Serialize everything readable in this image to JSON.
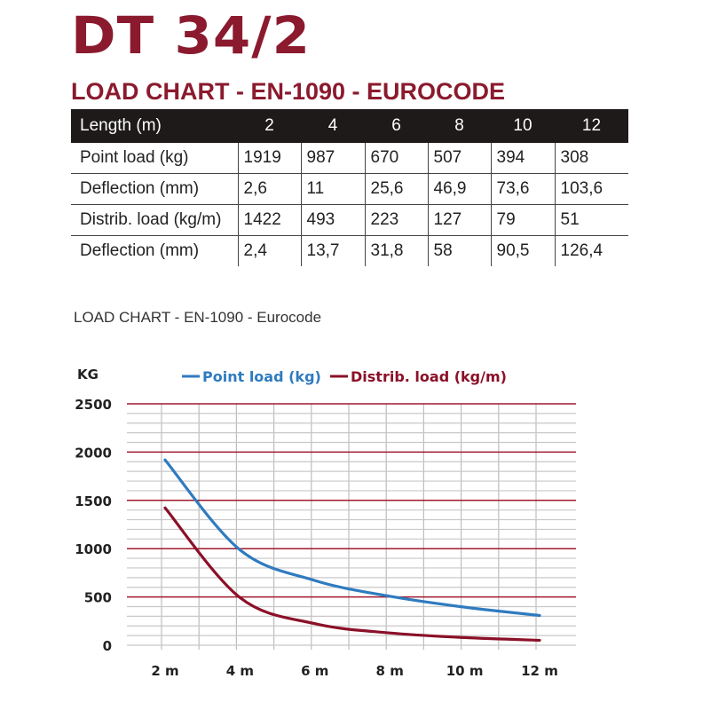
{
  "title": "DT 34/2",
  "subtitle": "LOAD CHART - EN-1090 - EUROCODE",
  "table": {
    "header": [
      "Length (m)",
      "2",
      "4",
      "6",
      "8",
      "10",
      "12"
    ],
    "rows": [
      [
        "Point load (kg)",
        "1919",
        "987",
        "670",
        "507",
        "394",
        "308"
      ],
      [
        "Deflection (mm)",
        "2,6",
        "11",
        "25,6",
        "46,9",
        "73,6",
        "103,6"
      ],
      [
        "Distrib. load (kg/m)",
        "1422",
        "493",
        "223",
        "127",
        "79",
        "51"
      ],
      [
        "Deflection (mm)",
        "2,4",
        "13,7",
        "31,8",
        "58",
        "90,5",
        "126,4"
      ]
    ]
  },
  "caption": "LOAD CHART - EN-1090 - Eurocode",
  "colors": {
    "brand": "#8b1a2e",
    "point_load": "#2f7bbf",
    "distrib_load": "#8b1028",
    "header_bg": "#1e1a19"
  },
  "chart_data": {
    "type": "line",
    "title": "",
    "ylabel": "KG",
    "xlabel": "",
    "x": [
      2,
      4,
      6,
      8,
      10,
      12
    ],
    "x_tick_labels": [
      "2 m",
      "4 m",
      "6 m",
      "8 m",
      "10 m",
      "12 m"
    ],
    "y_ticks": [
      "0",
      "500",
      "1000",
      "1500",
      "2000",
      "2500"
    ],
    "ylim": [
      0,
      2500
    ],
    "grid": true,
    "legend": "top",
    "series": [
      {
        "name": "Point load (kg)",
        "values": [
          1919,
          987,
          670,
          507,
          394,
          308
        ],
        "color": "#2f7bbf"
      },
      {
        "name": "Distrib. load (kg/m)",
        "values": [
          1422,
          493,
          223,
          127,
          79,
          51
        ],
        "color": "#8b1028"
      }
    ]
  }
}
